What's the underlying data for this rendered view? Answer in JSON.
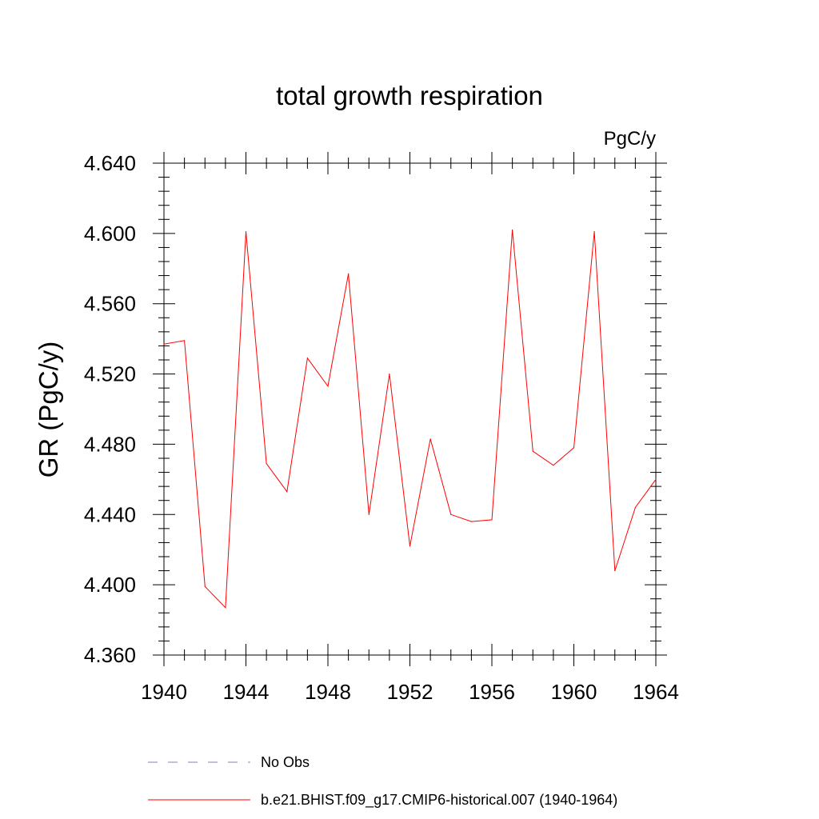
{
  "chart_data": {
    "type": "line",
    "title": "total growth respiration",
    "units_label": "PgC/y",
    "ylabel": "GR  (PgC/y)",
    "xlabel": "",
    "xlim": [
      1940,
      1964
    ],
    "ylim": [
      4.36,
      4.64
    ],
    "x_ticks": [
      1940,
      1944,
      1948,
      1952,
      1956,
      1960,
      1964
    ],
    "x_tick_labels": [
      "1940",
      "1944",
      "1948",
      "1952",
      "1956",
      "1960",
      "1964"
    ],
    "y_ticks": [
      4.36,
      4.4,
      4.44,
      4.48,
      4.52,
      4.56,
      4.6,
      4.64
    ],
    "y_tick_labels": [
      "4.360",
      "4.400",
      "4.440",
      "4.480",
      "4.520",
      "4.560",
      "4.600",
      "4.640"
    ],
    "grid": false,
    "legend_position": "bottom",
    "series": [
      {
        "name": "b.e21.BHIST.f09_g17.CMIP6-historical.007 (1940-1964)",
        "color": "#ff0000",
        "style": "solid",
        "x": [
          1940,
          1941,
          1942,
          1943,
          1944,
          1945,
          1946,
          1947,
          1948,
          1949,
          1950,
          1951,
          1952,
          1953,
          1954,
          1955,
          1956,
          1957,
          1958,
          1959,
          1960,
          1961,
          1962,
          1963,
          1964
        ],
        "y": [
          4.537,
          4.539,
          4.399,
          4.387,
          4.601,
          4.469,
          4.453,
          4.529,
          4.513,
          4.577,
          4.44,
          4.52,
          4.422,
          4.483,
          4.44,
          4.436,
          4.437,
          4.602,
          4.476,
          4.468,
          4.478,
          4.601,
          4.408,
          4.444,
          4.46
        ]
      }
    ],
    "legend": [
      {
        "label": "No Obs",
        "color": "#8080c0",
        "style": "dashed"
      },
      {
        "label": "b.e21.BHIST.f09_g17.CMIP6-historical.007 (1940-1964)",
        "color": "#ff0000",
        "style": "solid"
      }
    ]
  }
}
